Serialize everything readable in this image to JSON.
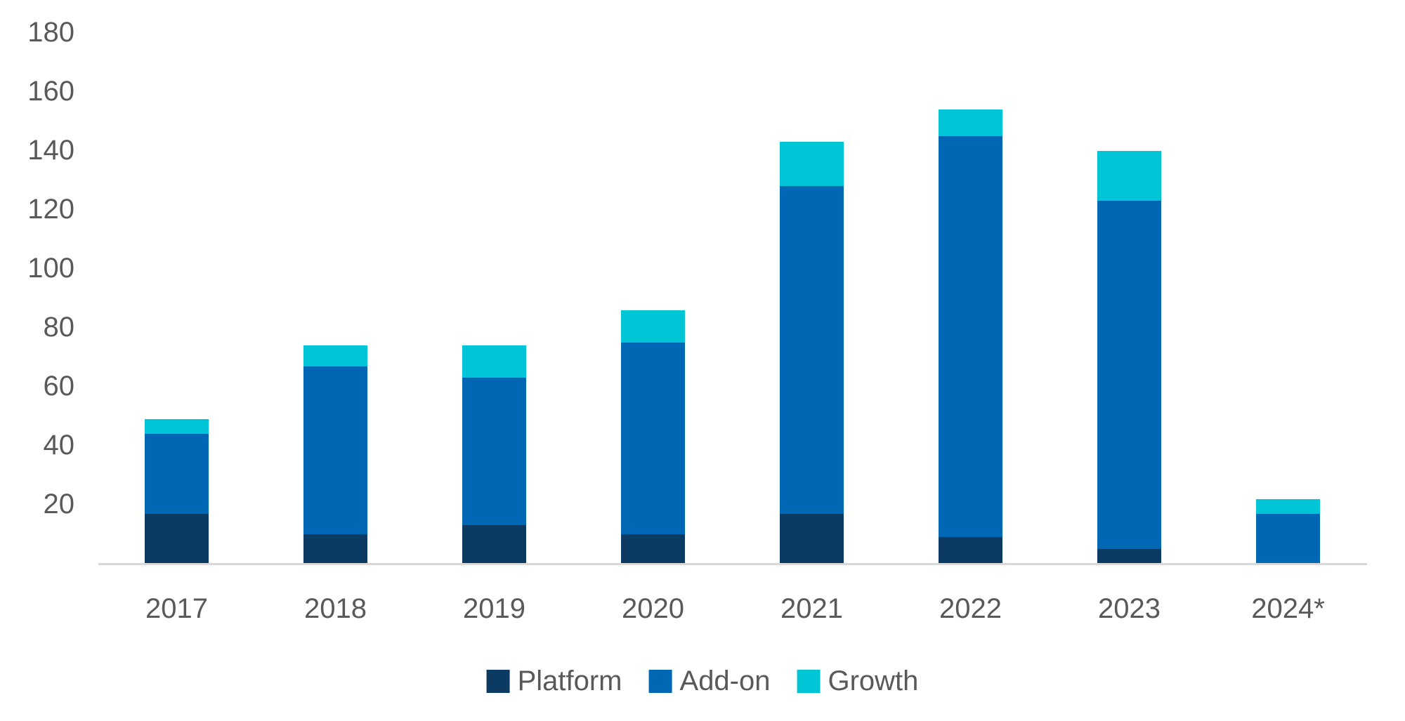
{
  "chart_data": {
    "type": "bar",
    "stacked": true,
    "title": "",
    "xlabel": "",
    "ylabel": "",
    "categories": [
      "2017",
      "2018",
      "2019",
      "2020",
      "2021",
      "2022",
      "2023",
      "2024*"
    ],
    "series": [
      {
        "name": "Platform",
        "color": "#0b3a63",
        "values": [
          17,
          10,
          13,
          10,
          17,
          9,
          5,
          0
        ]
      },
      {
        "name": "Add-on",
        "color": "#0067b4",
        "values": [
          27,
          57,
          50,
          65,
          111,
          136,
          118,
          17
        ]
      },
      {
        "name": "Growth",
        "color": "#00c5d6",
        "values": [
          5,
          7,
          11,
          11,
          15,
          9,
          17,
          5
        ]
      }
    ],
    "totals": [
      49,
      74,
      74,
      86,
      143,
      154,
      140,
      22
    ],
    "y_axis": {
      "min": 0,
      "max": 180,
      "tick_step": 20,
      "ticks": [
        20,
        40,
        60,
        80,
        100,
        120,
        140,
        160,
        180
      ],
      "zero_label_shown": false
    },
    "grid": false,
    "legend_position": "bottom",
    "colors": {
      "axis_line": "#d9d9d9",
      "label_text": "#595959",
      "background": "#ffffff"
    }
  }
}
